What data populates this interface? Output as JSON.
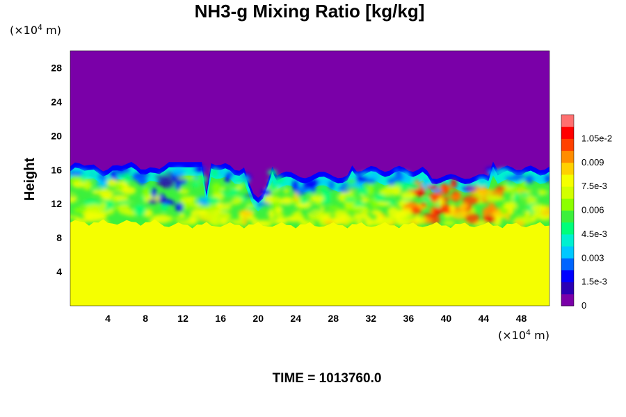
{
  "chart_data": {
    "type": "heatmap",
    "title": "NH3-g Mixing Ratio [kg/kg]",
    "ylabel": "Height",
    "xlabel": "",
    "x_unit": {
      "prefix": "(×10",
      "exp": "4",
      "suffix": " m)"
    },
    "y_unit": {
      "prefix": "(×10",
      "exp": "4",
      "suffix": " m)"
    },
    "xlim": [
      0,
      51
    ],
    "ylim": [
      0,
      30
    ],
    "x_ticks": [
      4,
      8,
      12,
      16,
      20,
      24,
      28,
      32,
      36,
      40,
      44,
      48
    ],
    "x_tick_labels": [
      "4",
      "8",
      "12",
      "16",
      "20",
      "24",
      "28",
      "32",
      "36",
      "40",
      "44",
      "48"
    ],
    "y_ticks": [
      4,
      8,
      12,
      16,
      20,
      24,
      28
    ],
    "y_tick_labels": [
      "4",
      "8",
      "12",
      "16",
      "20",
      "24",
      "28"
    ],
    "colorbar": {
      "min": 0,
      "max": 0.012,
      "ticks": [
        0,
        0.0015,
        0.003,
        0.0045,
        0.006,
        0.0075,
        0.009,
        0.0105
      ],
      "tick_labels": [
        "0",
        "1.5e-3",
        "0.003",
        "4.5e-3",
        "0.006",
        "7.5e-3",
        "0.009",
        "1.05e-2"
      ],
      "colors": [
        "#7a00a8",
        "#2a00b4",
        "#0000ff",
        "#0064ff",
        "#00c8ff",
        "#00f0d0",
        "#00ff7a",
        "#3cf03c",
        "#8cff00",
        "#d2ff00",
        "#f5ff00",
        "#ffd000",
        "#ff8c00",
        "#ff4000",
        "#ff0000",
        "#ff7070"
      ]
    },
    "regions": [
      {
        "level": "upper",
        "value": 0,
        "y_range": [
          16.8,
          30
        ]
      },
      {
        "level": "lower",
        "value": 0.0078,
        "y_range": [
          0,
          9.5
        ]
      },
      {
        "level": "mixed-layer",
        "value_range": [
          0.0015,
          0.0105
        ],
        "y_range": [
          9.5,
          17
        ]
      }
    ],
    "time_label": "TIME = 1013760.0"
  }
}
